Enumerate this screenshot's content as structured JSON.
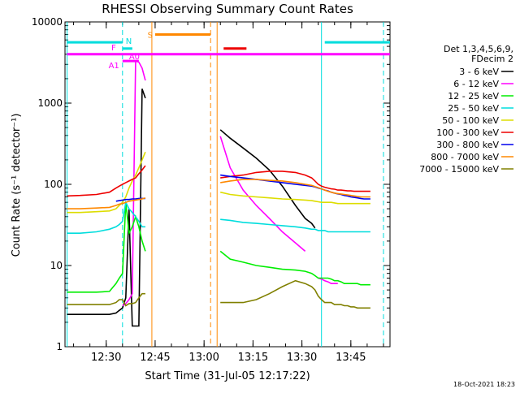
{
  "chart_data": {
    "type": "line",
    "title": "RHESSI Observing Summary Count Rates",
    "xlabel": "Start Time (31-Jul-05 12:17:22)",
    "ylabel": "Count Rate (s⁻¹ detector⁻¹)",
    "yscale": "log",
    "xlim": [
      "12:17:22",
      "13:57:00"
    ],
    "ylim": [
      1,
      10000
    ],
    "x_ticks": [
      "12:30",
      "12:45",
      "13:00",
      "13:15",
      "13:30",
      "13:45"
    ],
    "y_ticks": [
      "1",
      "10",
      "100",
      "1000",
      "10000"
    ],
    "legend_position": "right",
    "legend_header": [
      "Det 1,3,4,5,6,9,",
      "FDecim 2"
    ],
    "grid": false,
    "series": [
      {
        "name": "3 - 6 keV",
        "color": "#000000",
        "x": [
          "12:18",
          "12:22",
          "12:27",
          "12:31",
          "12:33",
          "12:34",
          "12:35",
          "12:36",
          "12:37",
          "12:38",
          "12:39",
          "12:40",
          "12:41",
          "12:42",
          "13:04",
          "13:05",
          "13:08",
          "13:12",
          "13:16",
          "13:20",
          "13:24",
          "13:28",
          "13:31",
          "13:33",
          "13:34",
          "13:35",
          "13:36"
        ],
        "y": [
          2.5,
          2.5,
          2.5,
          2.5,
          2.6,
          2.8,
          3,
          4,
          50,
          1.8,
          1.8,
          1.8,
          1500,
          1150,
          null,
          470,
          370,
          280,
          210,
          150,
          95,
          55,
          38,
          33,
          29,
          null,
          null
        ]
      },
      {
        "name": "6 - 12 keV",
        "color": "#ff00ff",
        "x": [
          "12:18",
          "12:22",
          "12:27",
          "12:31",
          "12:33",
          "12:34",
          "12:35",
          "12:36",
          "12:37",
          "12:38",
          "12:39",
          "12:40",
          "12:41",
          "12:42",
          "13:04",
          "13:05",
          "13:08",
          "13:12",
          "13:16",
          "13:20",
          "13:24",
          "13:28",
          "13:31",
          "13:33",
          "13:34",
          "13:35",
          "13:36",
          "13:37",
          "13:38",
          "13:39",
          "13:40",
          "13:41",
          "13:42",
          "13:43",
          "13:44",
          "13:45",
          "13:46",
          "13:47",
          "13:48",
          "13:49",
          "13:50",
          "13:51"
        ],
        "y": [
          null,
          null,
          null,
          null,
          null,
          null,
          3.2,
          3.4,
          3.8,
          4.5,
          3300,
          3200,
          2700,
          1900,
          null,
          390,
          160,
          85,
          55,
          38,
          26,
          19,
          15,
          null,
          null,
          7,
          6.8,
          6.5,
          6.3,
          6,
          6,
          6,
          null,
          null,
          null,
          null,
          null,
          null,
          null,
          null,
          null,
          null
        ]
      },
      {
        "name": "12 - 25 keV",
        "color": "#00ee00",
        "x": [
          "12:18",
          "12:22",
          "12:27",
          "12:31",
          "12:33",
          "12:34",
          "12:35",
          "12:36",
          "12:37",
          "12:38",
          "12:39",
          "12:40",
          "12:41",
          "12:42",
          "13:04",
          "13:05",
          "13:08",
          "13:12",
          "13:16",
          "13:20",
          "13:24",
          "13:28",
          "13:31",
          "13:33",
          "13:34",
          "13:35",
          "13:36",
          "13:37",
          "13:38",
          "13:39",
          "13:40",
          "13:41",
          "13:42",
          "13:43",
          "13:44",
          "13:45",
          "13:46",
          "13:47",
          "13:48",
          "13:49",
          "13:50",
          "13:51"
        ],
        "y": [
          4.7,
          4.7,
          4.7,
          4.8,
          6,
          7,
          8,
          60,
          25,
          30,
          40,
          30,
          20,
          15,
          null,
          15,
          12,
          11,
          10,
          9.5,
          9,
          8.8,
          8.5,
          8,
          7.5,
          7,
          7,
          7,
          7,
          6.8,
          6.5,
          6.5,
          6.3,
          6,
          6,
          6,
          6,
          6,
          5.8,
          5.8,
          5.8,
          5.8
        ]
      },
      {
        "name": "25 - 50 keV",
        "color": "#00dddd",
        "x": [
          "12:18",
          "12:22",
          "12:27",
          "12:31",
          "12:33",
          "12:34",
          "12:35",
          "12:36",
          "12:37",
          "12:38",
          "12:39",
          "12:40",
          "12:41",
          "12:42",
          "13:04",
          "13:05",
          "13:08",
          "13:12",
          "13:16",
          "13:20",
          "13:24",
          "13:28",
          "13:31",
          "13:33",
          "13:34",
          "13:35",
          "13:36",
          "13:37",
          "13:38",
          "13:39",
          "13:40",
          "13:41",
          "13:42",
          "13:43",
          "13:44",
          "13:45",
          "13:46",
          "13:47",
          "13:48",
          "13:49",
          "13:50",
          "13:51"
        ],
        "y": [
          25,
          25,
          26,
          28,
          30,
          32,
          35,
          60,
          50,
          45,
          40,
          35,
          30,
          30,
          null,
          37,
          36,
          34,
          33,
          32,
          31,
          30,
          29,
          28,
          28,
          27,
          27,
          27,
          26,
          26,
          26,
          26,
          26,
          26,
          26,
          26,
          26,
          26,
          26,
          26,
          26,
          26
        ]
      },
      {
        "name": "50 - 100 keV",
        "color": "#dddd00",
        "x": [
          "12:18",
          "12:22",
          "12:27",
          "12:31",
          "12:33",
          "12:34",
          "12:35",
          "12:36",
          "12:37",
          "12:38",
          "12:39",
          "12:40",
          "12:41",
          "12:42",
          "13:04",
          "13:05",
          "13:08",
          "13:12",
          "13:16",
          "13:20",
          "13:24",
          "13:28",
          "13:31",
          "13:33",
          "13:34",
          "13:35",
          "13:36",
          "13:37",
          "13:38",
          "13:39",
          "13:40",
          "13:41",
          "13:42",
          "13:43",
          "13:44",
          "13:45",
          "13:46",
          "13:47",
          "13:48",
          "13:49",
          "13:50",
          "13:51"
        ],
        "y": [
          45,
          45,
          46,
          47,
          50,
          55,
          60,
          70,
          90,
          110,
          130,
          160,
          200,
          250,
          null,
          80,
          75,
          72,
          70,
          68,
          66,
          65,
          64,
          63,
          62,
          61,
          60,
          60,
          60,
          60,
          59,
          58,
          58,
          58,
          58,
          58,
          58,
          58,
          58,
          58,
          58,
          58
        ]
      },
      {
        "name": "100 - 300 keV",
        "color": "#ee0000",
        "x": [
          "12:18",
          "12:22",
          "12:27",
          "12:31",
          "12:33",
          "12:34",
          "12:35",
          "12:36",
          "12:37",
          "12:38",
          "12:39",
          "12:40",
          "12:41",
          "12:42",
          "13:04",
          "13:05",
          "13:08",
          "13:12",
          "13:16",
          "13:20",
          "13:24",
          "13:28",
          "13:31",
          "13:33",
          "13:34",
          "13:35",
          "13:36",
          "13:37",
          "13:38",
          "13:39",
          "13:40",
          "13:41",
          "13:42",
          "13:43",
          "13:44",
          "13:45",
          "13:46",
          "13:47",
          "13:48",
          "13:49",
          "13:50",
          "13:51"
        ],
        "y": [
          72,
          73,
          75,
          80,
          90,
          95,
          100,
          105,
          110,
          115,
          120,
          135,
          150,
          170,
          null,
          120,
          125,
          130,
          140,
          145,
          145,
          140,
          130,
          120,
          110,
          100,
          95,
          92,
          90,
          88,
          87,
          85,
          85,
          84,
          83,
          83,
          82,
          82,
          82,
          82,
          82,
          82
        ]
      },
      {
        "name": "300 - 800 keV",
        "color": "#0000ee",
        "x": [
          "12:18",
          "12:22",
          "12:27",
          "12:31",
          "12:33",
          "12:34",
          "12:35",
          "12:36",
          "12:37",
          "12:38",
          "12:39",
          "12:40",
          "12:41",
          "12:42",
          "13:04",
          "13:05",
          "13:08",
          "13:12",
          "13:16",
          "13:20",
          "13:24",
          "13:28",
          "13:31",
          "13:33",
          "13:34",
          "13:35",
          "13:36",
          "13:37",
          "13:38",
          "13:39",
          "13:40",
          "13:41",
          "13:42",
          "13:43",
          "13:44",
          "13:45",
          "13:46",
          "13:47",
          "13:48",
          "13:49",
          "13:50",
          "13:51"
        ],
        "y": [
          null,
          null,
          null,
          null,
          62,
          63,
          64,
          65,
          65,
          66,
          66,
          67,
          67,
          67,
          null,
          130,
          125,
          120,
          115,
          110,
          105,
          100,
          97,
          95,
          93,
          90,
          88,
          85,
          83,
          80,
          78,
          76,
          75,
          73,
          72,
          70,
          69,
          68,
          67,
          66,
          66,
          66
        ]
      },
      {
        "name": "800 - 7000 keV",
        "color": "#ff8800",
        "x": [
          "12:18",
          "12:22",
          "12:27",
          "12:31",
          "12:33",
          "12:34",
          "12:35",
          "12:36",
          "12:37",
          "12:38",
          "12:39",
          "12:40",
          "12:41",
          "12:42",
          "13:04",
          "13:05",
          "13:08",
          "13:12",
          "13:16",
          "13:20",
          "13:24",
          "13:28",
          "13:31",
          "13:33",
          "13:34",
          "13:35",
          "13:36",
          "13:37",
          "13:38",
          "13:39",
          "13:40",
          "13:41",
          "13:42",
          "13:43",
          "13:44",
          "13:45",
          "13:46",
          "13:47",
          "13:48",
          "13:49",
          "13:50",
          "13:51"
        ],
        "y": [
          50,
          50,
          51,
          52,
          55,
          57,
          58,
          60,
          62,
          63,
          64,
          65,
          66,
          68,
          null,
          105,
          110,
          115,
          115,
          112,
          110,
          105,
          100,
          97,
          94,
          91,
          88,
          85,
          82,
          80,
          78,
          77,
          76,
          75,
          74,
          73,
          72,
          71,
          70,
          70,
          70,
          70
        ]
      },
      {
        "name": "7000 - 15000 keV",
        "color": "#808000",
        "x": [
          "12:18",
          "12:22",
          "12:27",
          "12:31",
          "12:33",
          "12:34",
          "12:35",
          "12:36",
          "12:37",
          "12:38",
          "12:39",
          "12:40",
          "12:41",
          "12:42",
          "13:04",
          "13:05",
          "13:08",
          "13:12",
          "13:16",
          "13:20",
          "13:24",
          "13:28",
          "13:31",
          "13:33",
          "13:34",
          "13:35",
          "13:36",
          "13:37",
          "13:38",
          "13:39",
          "13:40",
          "13:41",
          "13:42",
          "13:43",
          "13:44",
          "13:45",
          "13:46",
          "13:47",
          "13:48",
          "13:49",
          "13:50",
          "13:51"
        ],
        "y": [
          3.3,
          3.3,
          3.3,
          3.3,
          3.5,
          3.8,
          3.8,
          3.2,
          3.4,
          3.4,
          3.5,
          4,
          4.5,
          4.5,
          null,
          3.5,
          3.5,
          3.5,
          3.8,
          4.5,
          5.5,
          6.5,
          6,
          5.5,
          5,
          4.2,
          3.8,
          3.5,
          3.5,
          3.5,
          3.3,
          3.3,
          3.3,
          3.2,
          3.2,
          3.1,
          3.1,
          3,
          3,
          3,
          3,
          3
        ]
      }
    ],
    "flag_bars": [
      {
        "label": "",
        "color": "#00dddd",
        "value": 5600,
        "x_ranges": [
          [
            "12:18",
            "12:35"
          ],
          [
            "13:37",
            "13:57"
          ]
        ]
      },
      {
        "label": "N",
        "color": "#00dddd",
        "value": 4700,
        "x_ranges": [
          [
            "12:35",
            "12:38"
          ]
        ]
      },
      {
        "label": "S",
        "color": "#ff8800",
        "value": 7000,
        "x_ranges": [
          [
            "12:45",
            "13:02"
          ]
        ]
      },
      {
        "label": "",
        "color": "#ee0000",
        "value": 4700,
        "x_ranges": [
          [
            "13:06",
            "13:13"
          ]
        ]
      },
      {
        "label": "F",
        "color": "#ff00ff",
        "value": 4000,
        "x_ranges": [
          [
            "12:18",
            "13:57"
          ]
        ]
      },
      {
        "label": "A0",
        "color": "#ff00ff",
        "value": 3300,
        "x_ranges": [
          [
            "12:35",
            "12:40"
          ]
        ]
      },
      {
        "label": "A1",
        "color": "#ff00ff",
        "value": 3300,
        "x_ranges": []
      }
    ],
    "markers": [
      {
        "color": "#00dddd",
        "style": "solid",
        "x": "12:18"
      },
      {
        "color": "#00dddd",
        "style": "dash",
        "x": "12:35"
      },
      {
        "color": "#ff8800",
        "style": "solid",
        "x": "12:44"
      },
      {
        "color": "#ff8800",
        "style": "dash",
        "x": "13:02"
      },
      {
        "color": "#ff8800",
        "style": "solid",
        "x": "13:04"
      },
      {
        "color": "#00dddd",
        "style": "solid",
        "x": "13:36"
      },
      {
        "color": "#00dddd",
        "style": "dash",
        "x": "13:55"
      }
    ]
  },
  "footer": {
    "stamp": "18-Oct-2021 18:23"
  }
}
